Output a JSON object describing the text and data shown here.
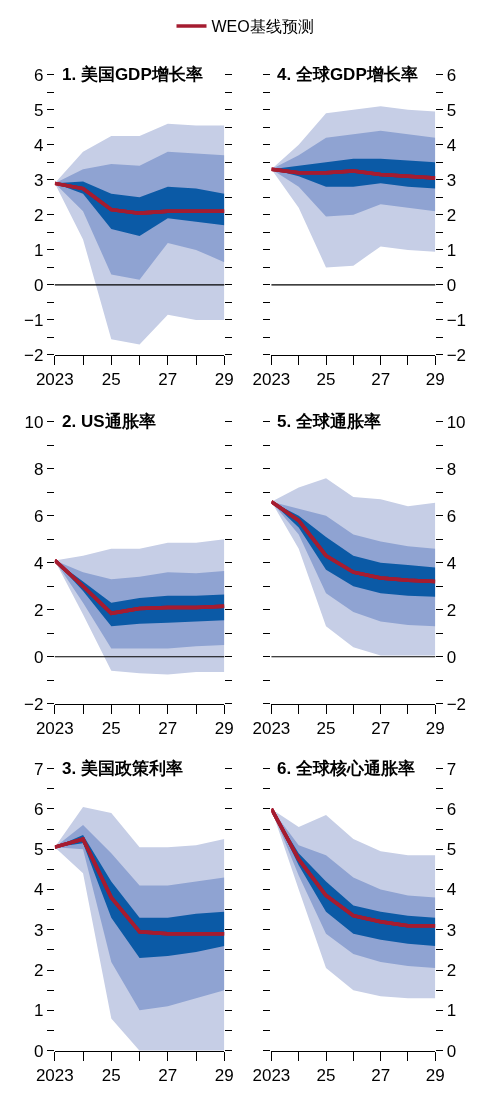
{
  "chart_data": [
    {
      "type": "line",
      "title": "1. 美国GDP增长率",
      "x": [
        2023,
        2024,
        2025,
        2026,
        2027,
        2028,
        2029
      ],
      "xlim": [
        2023,
        2029
      ],
      "xticks": [
        2023,
        {
          "value": 2024,
          "label": null
        },
        {
          "value": 2025,
          "label": "25"
        },
        {
          "value": 2026,
          "label": null
        },
        {
          "value": 2027,
          "label": "27"
        },
        {
          "value": 2028,
          "label": null
        },
        {
          "value": 2029,
          "label": "29"
        }
      ],
      "ylim": [
        -2,
        6
      ],
      "yticks": [
        -2,
        {
          "value": -1.5,
          "label": null
        },
        -1,
        {
          "value": -0.5,
          "label": null
        },
        0,
        {
          "value": 0.5,
          "label": null
        },
        1,
        {
          "value": 1.5,
          "label": null
        },
        2,
        {
          "value": 2.5,
          "label": null
        },
        3,
        {
          "value": 3.5,
          "label": null
        },
        4,
        {
          "value": 4.5,
          "label": null
        },
        5,
        {
          "value": 5.5,
          "label": null
        },
        6
      ],
      "legend": "top",
      "ref_lines": [
        {
          "axis": "y",
          "value": 0,
          "color": "#000000"
        }
      ],
      "series": [
        {
          "color": "#a51c30",
          "values": [
            2.9,
            2.75,
            2.15,
            2.05,
            2.1,
            2.1,
            2.1
          ],
          "lower": [
            2.9,
            1.3,
            -1.55,
            -1.7,
            -0.85,
            -1.0,
            -1.0
          ],
          "upper": [
            2.9,
            3.8,
            4.25,
            4.25,
            4.6,
            4.55,
            4.55
          ]
        },
        {
          "color": "#a51c30",
          "values": [
            2.9,
            2.75,
            2.15,
            2.05,
            2.1,
            2.1,
            2.1
          ],
          "lower": [
            2.9,
            2.1,
            0.3,
            0.15,
            1.2,
            1.0,
            0.65
          ],
          "upper": [
            2.9,
            3.3,
            3.45,
            3.4,
            3.8,
            3.75,
            3.7
          ]
        },
        {
          "name": "WEO基线预测",
          "color": "#a51c30",
          "values": [
            2.9,
            2.75,
            2.15,
            2.05,
            2.1,
            2.1,
            2.1
          ],
          "lower": [
            2.9,
            2.6,
            1.6,
            1.4,
            1.9,
            1.8,
            1.7
          ],
          "upper": [
            2.9,
            2.95,
            2.6,
            2.5,
            2.8,
            2.75,
            2.6
          ]
        }
      ]
    },
    {
      "type": "line",
      "title": "4. 全球GDP增长率",
      "x": [
        2023,
        2024,
        2025,
        2026,
        2027,
        2028,
        2029
      ],
      "xlim": [
        2023,
        2029
      ],
      "xticks": [
        2023,
        {
          "value": 2024,
          "label": null
        },
        {
          "value": 2025,
          "label": "25"
        },
        {
          "value": 2026,
          "label": null
        },
        {
          "value": 2027,
          "label": "27"
        },
        {
          "value": 2028,
          "label": null
        },
        {
          "value": 2029,
          "label": "29"
        }
      ],
      "y2lim": [
        -2,
        6
      ],
      "y2ticks": [
        -2,
        {
          "value": -1.5,
          "label": null
        },
        -1,
        {
          "value": -0.5,
          "label": null
        },
        0,
        {
          "value": 0.5,
          "label": null
        },
        1,
        {
          "value": 1.5,
          "label": null
        },
        2,
        {
          "value": 2.5,
          "label": null
        },
        3,
        {
          "value": 3.5,
          "label": null
        },
        4,
        {
          "value": 4.5,
          "label": null
        },
        5,
        {
          "value": 5.5,
          "label": null
        },
        6
      ],
      "ref_lines": [
        {
          "axis": "y2",
          "value": 0,
          "color": "#000000"
        }
      ],
      "series": [
        {
          "axis": "y2",
          "color": "#a51c30",
          "values": [
            3.3,
            3.2,
            3.2,
            3.25,
            3.15,
            3.1,
            3.05
          ],
          "lower": [
            3.3,
            2.2,
            0.5,
            0.55,
            1.1,
            1.0,
            0.95
          ],
          "upper": [
            3.3,
            4.0,
            4.9,
            5.0,
            5.1,
            5.0,
            4.95
          ]
        },
        {
          "axis": "y2",
          "color": "#a51c30",
          "values": [
            3.3,
            3.2,
            3.2,
            3.25,
            3.15,
            3.1,
            3.05
          ],
          "lower": [
            3.3,
            2.8,
            1.95,
            2.0,
            2.3,
            2.2,
            2.1
          ],
          "upper": [
            3.3,
            3.7,
            4.2,
            4.3,
            4.4,
            4.3,
            4.2
          ]
        },
        {
          "axis": "y2",
          "color": "#a51c30",
          "values": [
            3.3,
            3.2,
            3.2,
            3.25,
            3.15,
            3.1,
            3.05
          ],
          "lower": [
            3.3,
            3.1,
            2.8,
            2.8,
            2.9,
            2.8,
            2.75
          ],
          "upper": [
            3.3,
            3.4,
            3.5,
            3.6,
            3.6,
            3.55,
            3.5
          ]
        }
      ]
    },
    {
      "type": "line",
      "title": "2. US通胀率",
      "x": [
        2023,
        2024,
        2025,
        2026,
        2027,
        2028,
        2029
      ],
      "xlim": [
        2023,
        2029
      ],
      "xticks": [
        2023,
        {
          "value": 2024,
          "label": null
        },
        {
          "value": 2025,
          "label": "25"
        },
        {
          "value": 2026,
          "label": null
        },
        {
          "value": 2027,
          "label": "27"
        },
        {
          "value": 2028,
          "label": null
        },
        {
          "value": 2029,
          "label": "29"
        }
      ],
      "ylim": [
        -2,
        10
      ],
      "yticks": [
        -2,
        {
          "value": -1,
          "label": null
        },
        0,
        {
          "value": 1,
          "label": null
        },
        2,
        {
          "value": 3,
          "label": null
        },
        4,
        {
          "value": 5,
          "label": null
        },
        6,
        {
          "value": 7,
          "label": null
        },
        8,
        {
          "value": 9,
          "label": null
        },
        10
      ],
      "ref_lines": [
        {
          "axis": "y",
          "value": 0,
          "color": "#000000"
        }
      ],
      "series": [
        {
          "color": "#a51c30",
          "values": [
            4.1,
            3.0,
            1.85,
            2.05,
            2.1,
            2.1,
            2.15
          ],
          "lower": [
            4.1,
            1.8,
            -0.6,
            -0.7,
            -0.75,
            -0.65,
            -0.65
          ],
          "upper": [
            4.1,
            4.3,
            4.6,
            4.6,
            4.85,
            4.85,
            5.0
          ]
        },
        {
          "color": "#a51c30",
          "values": [
            4.1,
            3.0,
            1.85,
            2.05,
            2.1,
            2.1,
            2.15
          ],
          "lower": [
            4.1,
            2.3,
            0.35,
            0.35,
            0.35,
            0.45,
            0.5
          ],
          "upper": [
            4.1,
            3.6,
            3.3,
            3.4,
            3.6,
            3.55,
            3.65
          ]
        },
        {
          "color": "#a51c30",
          "values": [
            4.1,
            3.0,
            1.85,
            2.05,
            2.1,
            2.1,
            2.15
          ],
          "lower": [
            4.1,
            2.8,
            1.3,
            1.4,
            1.45,
            1.5,
            1.55
          ],
          "upper": [
            4.1,
            3.2,
            2.3,
            2.5,
            2.6,
            2.6,
            2.65
          ]
        }
      ]
    },
    {
      "type": "line",
      "title": "5. 全球通胀率",
      "x": [
        2023,
        2024,
        2025,
        2026,
        2027,
        2028,
        2029
      ],
      "xlim": [
        2023,
        2029
      ],
      "xticks": [
        2023,
        {
          "value": 2024,
          "label": null
        },
        {
          "value": 2025,
          "label": "25"
        },
        {
          "value": 2026,
          "label": null
        },
        {
          "value": 2027,
          "label": "27"
        },
        {
          "value": 2028,
          "label": null
        },
        {
          "value": 2029,
          "label": "29"
        }
      ],
      "y2lim": [
        -2,
        10
      ],
      "y2ticks": [
        -2,
        {
          "value": -1,
          "label": null
        },
        0,
        {
          "value": 1,
          "label": null
        },
        2,
        {
          "value": 3,
          "label": null
        },
        4,
        {
          "value": 5,
          "label": null
        },
        6,
        {
          "value": 7,
          "label": null
        },
        8,
        {
          "value": 9,
          "label": null
        },
        10
      ],
      "ref_lines": [
        {
          "axis": "y2",
          "value": 0,
          "color": "#000000"
        }
      ],
      "series": [
        {
          "axis": "y2",
          "color": "#a51c30",
          "values": [
            6.6,
            5.8,
            4.3,
            3.6,
            3.35,
            3.25,
            3.2
          ],
          "lower": [
            6.6,
            4.6,
            1.3,
            0.4,
            0.05,
            0.05,
            0.05
          ],
          "upper": [
            6.6,
            7.2,
            7.6,
            6.8,
            6.7,
            6.4,
            6.55
          ]
        },
        {
          "axis": "y2",
          "color": "#a51c30",
          "values": [
            6.6,
            5.8,
            4.3,
            3.6,
            3.35,
            3.25,
            3.2
          ],
          "lower": [
            6.6,
            5.2,
            2.7,
            1.9,
            1.5,
            1.35,
            1.3
          ],
          "upper": [
            6.6,
            6.3,
            6.0,
            5.2,
            4.9,
            4.7,
            4.6
          ]
        },
        {
          "axis": "y2",
          "color": "#a51c30",
          "values": [
            6.6,
            5.8,
            4.3,
            3.6,
            3.35,
            3.25,
            3.2
          ],
          "lower": [
            6.6,
            5.5,
            3.7,
            3.0,
            2.7,
            2.6,
            2.55
          ],
          "upper": [
            6.6,
            6.0,
            5.1,
            4.3,
            4.0,
            3.9,
            3.8
          ]
        }
      ]
    },
    {
      "type": "line",
      "title": "3. 美国政策利率",
      "x": [
        2023,
        2024,
        2025,
        2026,
        2027,
        2028,
        2029
      ],
      "xlim": [
        2023,
        2029
      ],
      "xticks": [
        2023,
        {
          "value": 2024,
          "label": null
        },
        {
          "value": 2025,
          "label": "25"
        },
        {
          "value": 2026,
          "label": null
        },
        {
          "value": 2027,
          "label": "27"
        },
        {
          "value": 2028,
          "label": null
        },
        {
          "value": 2029,
          "label": "29"
        }
      ],
      "ylim": [
        0,
        7
      ],
      "yticks": [
        0,
        {
          "value": 0.5,
          "label": null
        },
        1,
        {
          "value": 1.5,
          "label": null
        },
        2,
        {
          "value": 2.5,
          "label": null
        },
        3,
        {
          "value": 3.5,
          "label": null
        },
        4,
        {
          "value": 4.5,
          "label": null
        },
        5,
        {
          "value": 5.5,
          "label": null
        },
        6,
        {
          "value": 6.5,
          "label": null
        },
        7
      ],
      "series": [
        {
          "color": "#a51c30",
          "values": [
            5.05,
            5.25,
            3.8,
            2.95,
            2.9,
            2.9,
            2.9
          ],
          "lower": [
            5.05,
            4.4,
            0.8,
            0,
            0,
            0,
            0
          ],
          "upper": [
            5.05,
            6.05,
            5.9,
            5.05,
            5.05,
            5.1,
            5.25
          ]
        },
        {
          "color": "#a51c30",
          "values": [
            5.05,
            5.25,
            3.8,
            2.95,
            2.9,
            2.9,
            2.9
          ],
          "lower": [
            5.05,
            5.0,
            2.2,
            1.0,
            1.1,
            1.3,
            1.5
          ],
          "upper": [
            5.05,
            5.6,
            4.9,
            4.1,
            4.1,
            4.2,
            4.3
          ]
        },
        {
          "color": "#a51c30",
          "values": [
            5.05,
            5.25,
            3.8,
            2.95,
            2.9,
            2.9,
            2.9
          ],
          "lower": [
            5.05,
            5.15,
            3.3,
            2.3,
            2.35,
            2.45,
            2.6
          ],
          "upper": [
            5.05,
            5.35,
            4.2,
            3.3,
            3.3,
            3.4,
            3.45
          ]
        }
      ]
    },
    {
      "type": "line",
      "title": "6. 全球核心通胀率",
      "x": [
        2023,
        2024,
        2025,
        2026,
        2027,
        2028,
        2029
      ],
      "xlim": [
        2023,
        2029
      ],
      "xticks": [
        2023,
        {
          "value": 2024,
          "label": null
        },
        {
          "value": 2025,
          "label": "25"
        },
        {
          "value": 2026,
          "label": null
        },
        {
          "value": 2027,
          "label": "27"
        },
        {
          "value": 2028,
          "label": null
        },
        {
          "value": 2029,
          "label": "29"
        }
      ],
      "y2lim": [
        0,
        7
      ],
      "y2ticks": [
        0,
        {
          "value": 0.5,
          "label": null
        },
        1,
        {
          "value": 1.5,
          "label": null
        },
        2,
        {
          "value": 2.5,
          "label": null
        },
        3,
        {
          "value": 3.5,
          "label": null
        },
        4,
        {
          "value": 4.5,
          "label": null
        },
        5,
        {
          "value": 5.5,
          "label": null
        },
        6,
        {
          "value": 6.5,
          "label": null
        },
        7
      ],
      "series": [
        {
          "axis": "y2",
          "color": "#a51c30",
          "values": [
            6.0,
            4.75,
            3.85,
            3.35,
            3.2,
            3.1,
            3.1
          ],
          "lower": [
            6.0,
            4.0,
            2.05,
            1.5,
            1.35,
            1.3,
            1.3
          ],
          "upper": [
            6.0,
            5.55,
            5.85,
            5.25,
            4.95,
            4.85,
            4.85
          ]
        },
        {
          "axis": "y2",
          "color": "#a51c30",
          "values": [
            6.0,
            4.75,
            3.85,
            3.35,
            3.2,
            3.1,
            3.1
          ],
          "lower": [
            6.0,
            4.35,
            2.9,
            2.4,
            2.2,
            2.1,
            2.05
          ],
          "upper": [
            6.0,
            5.1,
            4.85,
            4.3,
            4.0,
            3.85,
            3.8
          ]
        },
        {
          "axis": "y2",
          "color": "#a51c30",
          "values": [
            6.0,
            4.75,
            3.85,
            3.35,
            3.2,
            3.1,
            3.1
          ],
          "lower": [
            6.0,
            4.6,
            3.45,
            2.9,
            2.75,
            2.65,
            2.6
          ],
          "upper": [
            6.0,
            4.9,
            4.2,
            3.6,
            3.45,
            3.35,
            3.3
          ]
        }
      ]
    }
  ]
}
